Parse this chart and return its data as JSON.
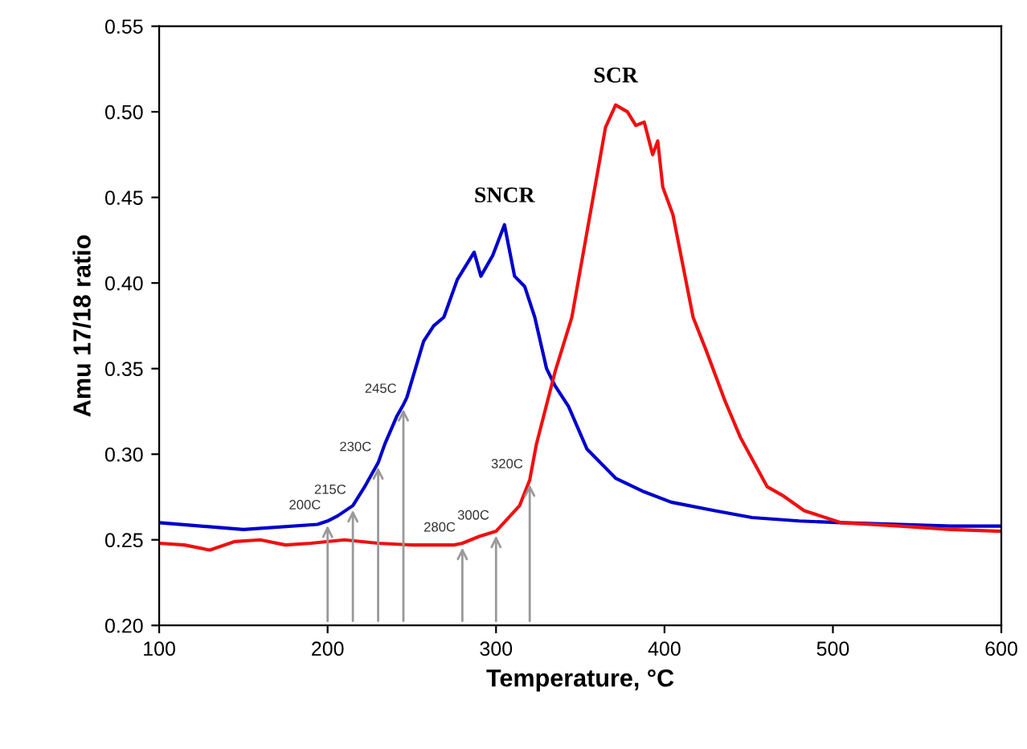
{
  "chart_data": {
    "type": "line",
    "xlabel": "Temperature, °C",
    "ylabel": "Amu 17/18 ratio",
    "xlim": [
      100,
      600
    ],
    "xticks": [
      100,
      200,
      300,
      400,
      500,
      600
    ],
    "ylim": [
      0.2,
      0.55
    ],
    "yticks": [
      {
        "value": 0.2,
        "label": "0.20"
      },
      {
        "value": 0.25,
        "label": "0.25"
      },
      {
        "value": 0.3,
        "label": "0.30"
      },
      {
        "value": 0.35,
        "label": "0.35"
      },
      {
        "value": 0.4,
        "label": "0.40"
      },
      {
        "value": 0.45,
        "label": "0.45"
      },
      {
        "value": 0.5,
        "label": "0.50"
      },
      {
        "value": 0.55,
        "label": "0.55"
      }
    ],
    "grid": false,
    "legend": false,
    "marker": "none",
    "line_style": "solid",
    "series": [
      {
        "name": "SNCR",
        "color": "#0000cc",
        "x": [
          100,
          150,
          194,
          200,
          206,
          215,
          222,
          230,
          234,
          241,
          245,
          247,
          257,
          263,
          269,
          277,
          287,
          291,
          298,
          305,
          311,
          317,
          323,
          330,
          335,
          343,
          354,
          371,
          388,
          404,
          430,
          452,
          480,
          505,
          540,
          570,
          600
        ],
        "values": [
          0.26,
          0.256,
          0.259,
          0.261,
          0.264,
          0.27,
          0.281,
          0.295,
          0.306,
          0.322,
          0.329,
          0.333,
          0.366,
          0.375,
          0.38,
          0.402,
          0.418,
          0.404,
          0.416,
          0.434,
          0.404,
          0.398,
          0.38,
          0.35,
          0.34,
          0.328,
          0.303,
          0.286,
          0.278,
          0.272,
          0.267,
          0.263,
          0.261,
          0.26,
          0.259,
          0.258,
          0.258
        ]
      },
      {
        "name": "SCR",
        "color": "#ee1111",
        "x": [
          100,
          115,
          130,
          145,
          160,
          175,
          190,
          210,
          230,
          250,
          275,
          280,
          290,
          300,
          314,
          320,
          324,
          335,
          345,
          358,
          365,
          371,
          378,
          383,
          388,
          393,
          396,
          399,
          405,
          417,
          425,
          436,
          445,
          461,
          470,
          483,
          505,
          540,
          570,
          600
        ],
        "values": [
          0.248,
          0.247,
          0.244,
          0.249,
          0.25,
          0.247,
          0.248,
          0.25,
          0.248,
          0.247,
          0.247,
          0.248,
          0.252,
          0.255,
          0.27,
          0.285,
          0.306,
          0.348,
          0.38,
          0.452,
          0.491,
          0.504,
          0.5,
          0.492,
          0.494,
          0.475,
          0.483,
          0.456,
          0.44,
          0.38,
          0.36,
          0.331,
          0.31,
          0.281,
          0.276,
          0.267,
          0.26,
          0.258,
          0.256,
          0.255
        ]
      }
    ],
    "annotations": [
      {
        "text": "200C",
        "x": 200,
        "y": 0.261
      },
      {
        "text": "215C",
        "x": 215,
        "y": 0.27
      },
      {
        "text": "230C",
        "x": 230,
        "y": 0.295
      },
      {
        "text": "245C",
        "x": 245,
        "y": 0.329
      },
      {
        "text": "280C",
        "x": 280,
        "y": 0.248
      },
      {
        "text": "300C",
        "x": 300,
        "y": 0.255
      },
      {
        "text": "320C",
        "x": 320,
        "y": 0.285
      }
    ]
  }
}
